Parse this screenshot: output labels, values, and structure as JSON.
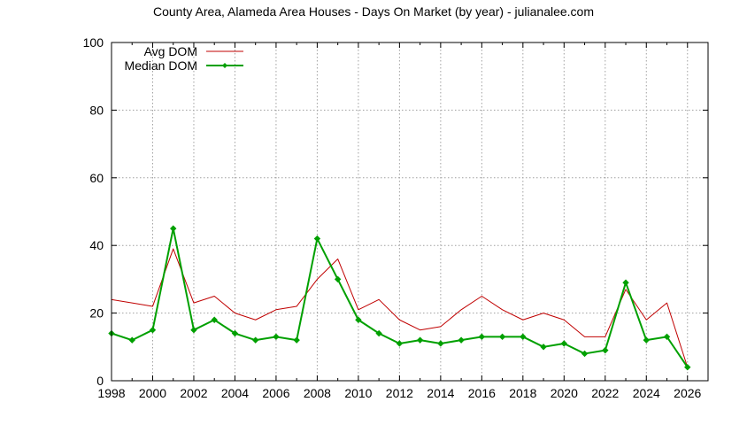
{
  "chart_data": {
    "type": "line",
    "title": "County Area, Alameda Area Houses - Days On Market (by year) - julianalee.com",
    "xlabel": "",
    "ylabel": "",
    "xlim": [
      1998,
      2027
    ],
    "ylim": [
      0,
      100
    ],
    "x_ticks": [
      1998,
      2000,
      2002,
      2004,
      2006,
      2008,
      2010,
      2012,
      2014,
      2016,
      2018,
      2020,
      2022,
      2024,
      2026
    ],
    "y_ticks": [
      0,
      20,
      40,
      60,
      80,
      100
    ],
    "grid": true,
    "legend_position": "top-left",
    "x": [
      1998,
      1999,
      2000,
      2001,
      2002,
      2003,
      2004,
      2005,
      2006,
      2007,
      2008,
      2009,
      2010,
      2011,
      2012,
      2013,
      2014,
      2015,
      2016,
      2017,
      2018,
      2019,
      2020,
      2021,
      2022,
      2023,
      2024,
      2025,
      2026
    ],
    "series": [
      {
        "name": "Avg DOM",
        "color": "#c00000",
        "marker": "none",
        "values": [
          24,
          23,
          22,
          39,
          23,
          25,
          20,
          18,
          21,
          22,
          30,
          36,
          21,
          24,
          18,
          15,
          16,
          21,
          25,
          21,
          18,
          20,
          18,
          13,
          13,
          27,
          18,
          23,
          4
        ]
      },
      {
        "name": "Median DOM",
        "color": "#00a000",
        "marker": "diamond",
        "values": [
          14,
          12,
          15,
          45,
          15,
          18,
          14,
          12,
          13,
          12,
          42,
          30,
          18,
          14,
          11,
          12,
          11,
          12,
          13,
          13,
          13,
          10,
          11,
          8,
          9,
          29,
          12,
          13,
          4
        ]
      }
    ]
  }
}
